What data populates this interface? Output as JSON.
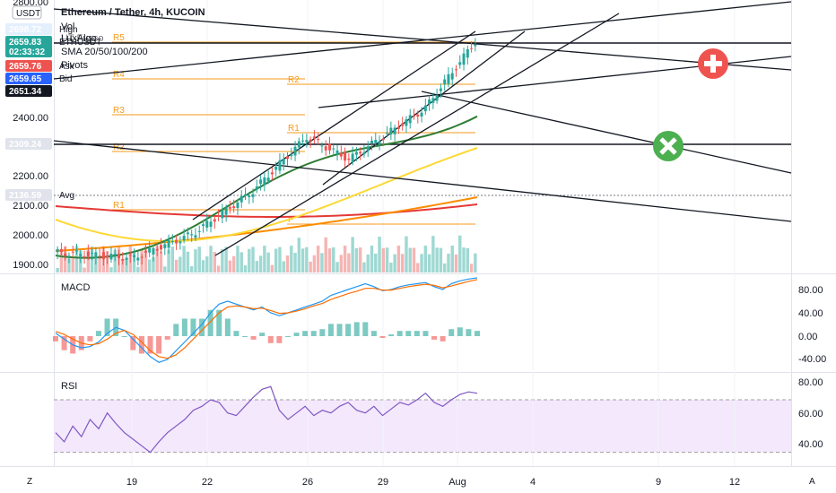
{
  "chart_data": {
    "type": "candlestick",
    "title": "Ethereum / Tether, 4h, KUCOIN",
    "currency": "USDT",
    "legend": [
      "Vol",
      "LuxAlgo",
      "UT Fusco",
      "SMA 20/50/100/200",
      "Pivots"
    ],
    "x_ticks": [
      "19",
      "22",
      "26",
      "29",
      "Aug",
      "4",
      "9",
      "12"
    ],
    "y_ticks": [
      "2800.00",
      "2400.00",
      "2200.00",
      "2100.00",
      "2000.00",
      "1900.00"
    ],
    "ylim": [
      1880,
      2820
    ],
    "price_tags": [
      {
        "label": "2698.72",
        "name": "High",
        "value": 2698.72,
        "color": "#e3effd",
        "text_color": "#2962ff"
      },
      {
        "label": "2659.83",
        "sub": "02:33:32",
        "name": "ETHUSDT",
        "value": 2659.83,
        "color": "#26a69a",
        "text_color": "#ffffff"
      },
      {
        "label": "2659.76",
        "name": "Ask",
        "value": 2659.76,
        "color": "#ef5350",
        "text_color": "#ffffff"
      },
      {
        "label": "2659.65",
        "name": "Bid",
        "value": 2659.65,
        "color": "#2962ff",
        "text_color": "#ffffff"
      },
      {
        "label": "2651.34",
        "name": "",
        "value": 2651.34,
        "color": "#131722",
        "text_color": "#ffffff"
      },
      {
        "label": "2309.24",
        "name": "",
        "value": 2309.24,
        "color": "#e0e3eb",
        "text_color": "#131722"
      },
      {
        "label": "2136.59",
        "name": "Avg",
        "value": 2136.59,
        "color": "#e0e3eb",
        "text_color": "#131722"
      }
    ],
    "pivot_labels": [
      "R5",
      "R4",
      "R3",
      "R2",
      "R1",
      "P",
      "R1",
      "R2"
    ],
    "macd": {
      "label": "MACD",
      "y_ticks": [
        "80.00",
        "40.00",
        "0.00",
        "-40.00"
      ],
      "ylim": [
        -60,
        100
      ],
      "macd": [
        5,
        -5,
        -15,
        -20,
        -18,
        -10,
        5,
        15,
        10,
        -5,
        -20,
        -35,
        -45,
        -40,
        -25,
        -10,
        5,
        20,
        40,
        55,
        60,
        55,
        50,
        45,
        50,
        40,
        35,
        40,
        45,
        50,
        55,
        60,
        70,
        75,
        80,
        85,
        90,
        85,
        78,
        80,
        85,
        88,
        90,
        92,
        85,
        80,
        90,
        95,
        98,
        100
      ],
      "signal": [
        8,
        3,
        -5,
        -12,
        -15,
        -13,
        -5,
        5,
        10,
        3,
        -10,
        -25,
        -35,
        -38,
        -32,
        -20,
        -5,
        10,
        25,
        40,
        50,
        52,
        50,
        47,
        48,
        44,
        39,
        40,
        43,
        47,
        52,
        56,
        63,
        68,
        73,
        77,
        82,
        82,
        79,
        79,
        82,
        85,
        87,
        89,
        87,
        83,
        86,
        90,
        94,
        97
      ]
    },
    "rsi": {
      "label": "RSI",
      "y_ticks": [
        "80.00",
        "60.00",
        "40.00"
      ],
      "ylim": [
        25,
        85
      ],
      "band": [
        30,
        70
      ],
      "values": [
        45,
        38,
        50,
        42,
        55,
        48,
        60,
        52,
        45,
        40,
        35,
        30,
        38,
        45,
        50,
        55,
        62,
        65,
        70,
        68,
        60,
        58,
        65,
        72,
        78,
        80,
        62,
        55,
        60,
        65,
        58,
        62,
        60,
        65,
        68,
        62,
        60,
        65,
        58,
        63,
        68,
        66,
        70,
        75,
        68,
        65,
        70,
        74,
        76,
        75
      ]
    },
    "watermark": [
      "Z",
      "A"
    ]
  }
}
